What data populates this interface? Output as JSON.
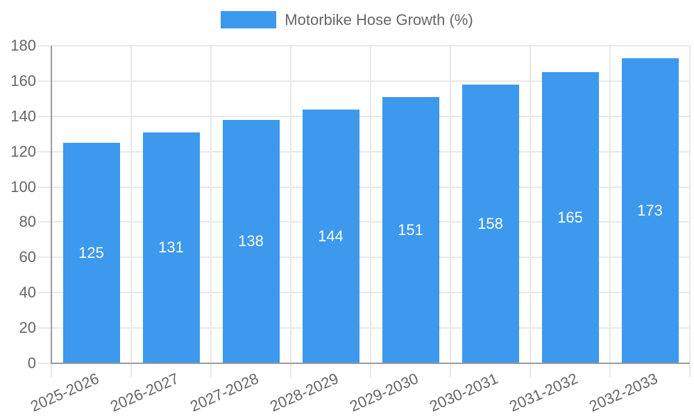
{
  "legend": {
    "label": "Motorbike Hose Growth (%)",
    "position": "top"
  },
  "chart_data": {
    "type": "bar",
    "categories": [
      "2025-2026",
      "2026-2027",
      "2027-2028",
      "2028-2029",
      "2029-2030",
      "2030-2031",
      "2031-2032",
      "2032-2033"
    ],
    "series": [
      {
        "name": "Motorbike Hose Growth (%)",
        "values": [
          125,
          131,
          138,
          144,
          151,
          158,
          165,
          173
        ]
      }
    ],
    "yticks": [
      0,
      20,
      40,
      60,
      80,
      100,
      120,
      140,
      160,
      180
    ],
    "ylim": [
      0,
      180
    ],
    "xlabel": "",
    "ylabel": "",
    "grid": true,
    "legend_position": "top",
    "x_label_rotation_deg": -24,
    "value_labels_shown": true
  },
  "colors": {
    "bar": "#3C99ED",
    "value_label_text": "#FFFFFF",
    "gridline": "#E8E8E8",
    "axis_line": "#9A9A9A",
    "tick_text": "#666666",
    "legend_text": "#666666",
    "background": "#FFFFFF"
  }
}
